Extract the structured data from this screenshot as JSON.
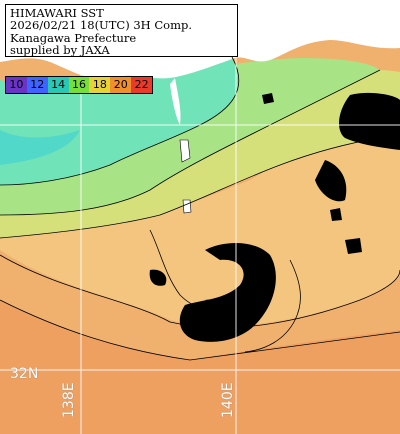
{
  "header": {
    "line1": "HIMAWARI SST",
    "line2": "2026/02/21 18(UTC) 3H Comp.",
    "line3": "Kanagawa Prefecture",
    "line4": "supplied by JAXA"
  },
  "legend": {
    "items": [
      {
        "value": "10",
        "color": "#6a34c4"
      },
      {
        "value": "12",
        "color": "#3f63ff"
      },
      {
        "value": "14",
        "color": "#28c8b4"
      },
      {
        "value": "16",
        "color": "#76e03a"
      },
      {
        "value": "18",
        "color": "#e8d23a"
      },
      {
        "value": "20",
        "color": "#f0902c"
      },
      {
        "value": "22",
        "color": "#ea3b2a"
      }
    ]
  },
  "grid": {
    "lat_labels": [
      "32N"
    ],
    "lon_labels": [
      "138E",
      "140E"
    ]
  },
  "colors": {
    "land": "#ffffff",
    "cloud": "#000000",
    "cold_water": "#6ee6b6",
    "cool_water": "#9ee48a",
    "mid_water": "#cfe27a",
    "warm_water": "#f3cf82",
    "hot_water": "#efaa68"
  }
}
